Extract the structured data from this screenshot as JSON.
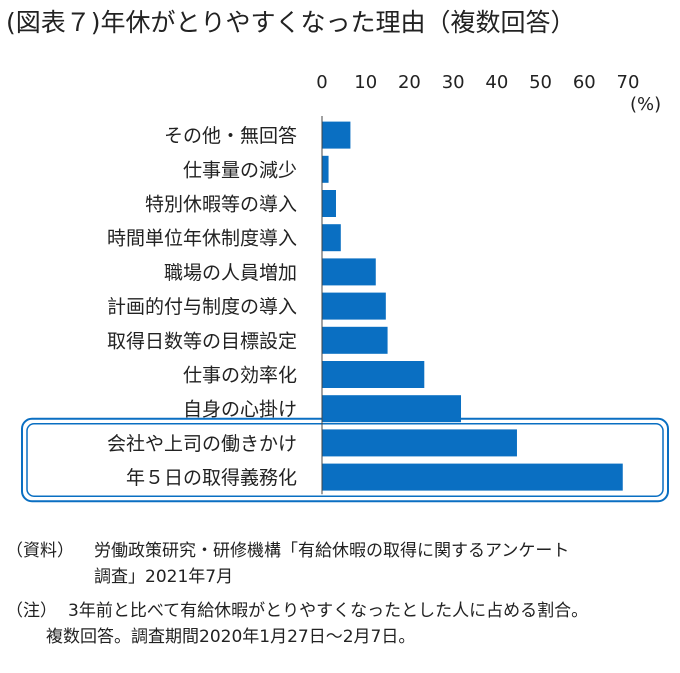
{
  "title": "(図表７)年休がとりやすくなった理由（複数回答）",
  "colors": {
    "bar": "#0a6fc2",
    "highlight": "#0a6fc2"
  },
  "chart_data": {
    "type": "bar",
    "orientation": "horizontal",
    "unit": "(%)",
    "xlim": [
      0,
      70
    ],
    "ticks": [
      0,
      10,
      20,
      30,
      40,
      50,
      60,
      70
    ],
    "tick_position": "top",
    "grid": false,
    "categories": [
      "その他・無回答",
      "仕事量の減少",
      "特別休暇等の導入",
      "時間単位年休制度導入",
      "職場の人員増加",
      "計画的付与制度の導入",
      "取得日数等の目標設定",
      "仕事の効率化",
      "自身の心掛け",
      "会社や上司の働きかけ",
      "年５日の取得義務化"
    ],
    "values": [
      6.5,
      1.5,
      3.2,
      4.3,
      12.3,
      14.6,
      15.0,
      23.4,
      31.8,
      44.6,
      68.8
    ],
    "highlighted": [
      "会社や上司の働きかけ",
      "年５日の取得義務化"
    ]
  },
  "source": {
    "label": "（資料）",
    "line1": "労働政策研究・研修機構「有給休暇の取得に関するアンケート",
    "line2": "調査」2021年7月"
  },
  "note": {
    "label": "（注）",
    "line1": "3年前と比べて有給休暇がとりやすくなったとした人に占める割合。",
    "line2": "複数回答。調査期間2020年1月27日～2月7日。"
  }
}
